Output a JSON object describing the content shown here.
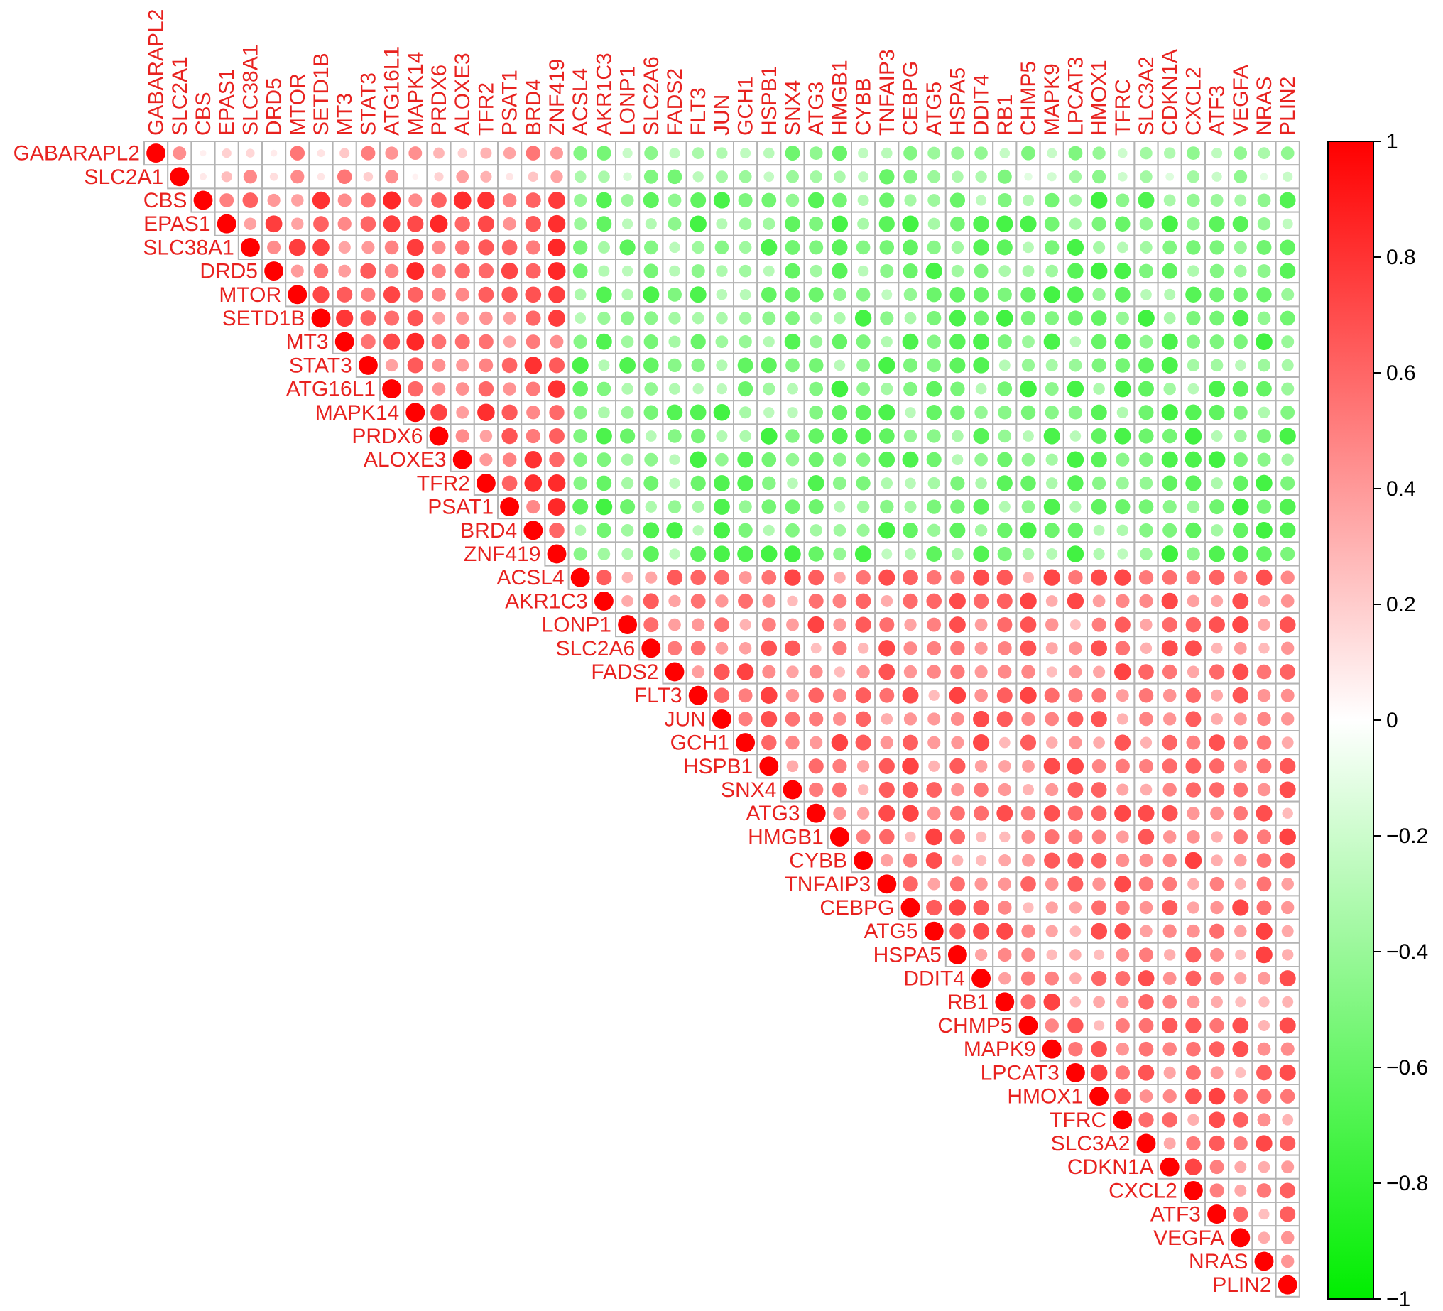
{
  "chart_data": {
    "type": "heatmap",
    "subtype": "correlation-upper-triangle-circles",
    "title": "",
    "variables": [
      "GABARAPL2",
      "SLC2A1",
      "CBS",
      "EPAS1",
      "SLC38A1",
      "DRD5",
      "MTOR",
      "SETD1B",
      "MT3",
      "STAT3",
      "ATG16L1",
      "MAPK14",
      "PRDX6",
      "ALOXE3",
      "TFR2",
      "PSAT1",
      "BRD4",
      "ZNF419",
      "ACSL4",
      "AKR1C3",
      "LONP1",
      "SLC2A6",
      "FADS2",
      "FLT3",
      "JUN",
      "GCH1",
      "HSPB1",
      "SNX4",
      "ATG3",
      "HMGB1",
      "CYBB",
      "TNFAIP3",
      "CEBPG",
      "ATG5",
      "HSPA5",
      "DDIT4",
      "RB1",
      "CHMP5",
      "MAPK9",
      "LPCAT3",
      "HMOX1",
      "TFRC",
      "SLC3A2",
      "CDKN1A",
      "CXCL2",
      "ATF3",
      "VEGFA",
      "NRAS",
      "PLIN2"
    ],
    "groups": [
      {
        "start": 0,
        "end": 1,
        "intra": 0.6,
        "to_group2": 0.3,
        "to_group3": -0.35
      },
      {
        "start": 2,
        "end": 17,
        "intra": 0.6,
        "to_group3": -0.5
      },
      {
        "start": 18,
        "end": 48,
        "intra": 0.5
      }
    ],
    "cell_value_note": "Correlation coefficients estimated from circle color and size; diagonal = 1",
    "colorbar": {
      "min": -1,
      "max": 1,
      "ticks": [
        "1",
        "0.8",
        "0.6",
        "0.4",
        "0.2",
        "0",
        "−0.2",
        "−0.4",
        "−0.6",
        "−0.8",
        "−1"
      ],
      "tick_values": [
        1,
        0.8,
        0.6,
        0.4,
        0.2,
        0,
        -0.2,
        -0.4,
        -0.6,
        -0.8,
        -1
      ]
    },
    "colors": {
      "positive": "#ff0000",
      "negative": "#00ee00",
      "neutral": "#ffffff",
      "label": "#e8221f",
      "grid": "#b4b4b4"
    },
    "legend_position": "right"
  }
}
